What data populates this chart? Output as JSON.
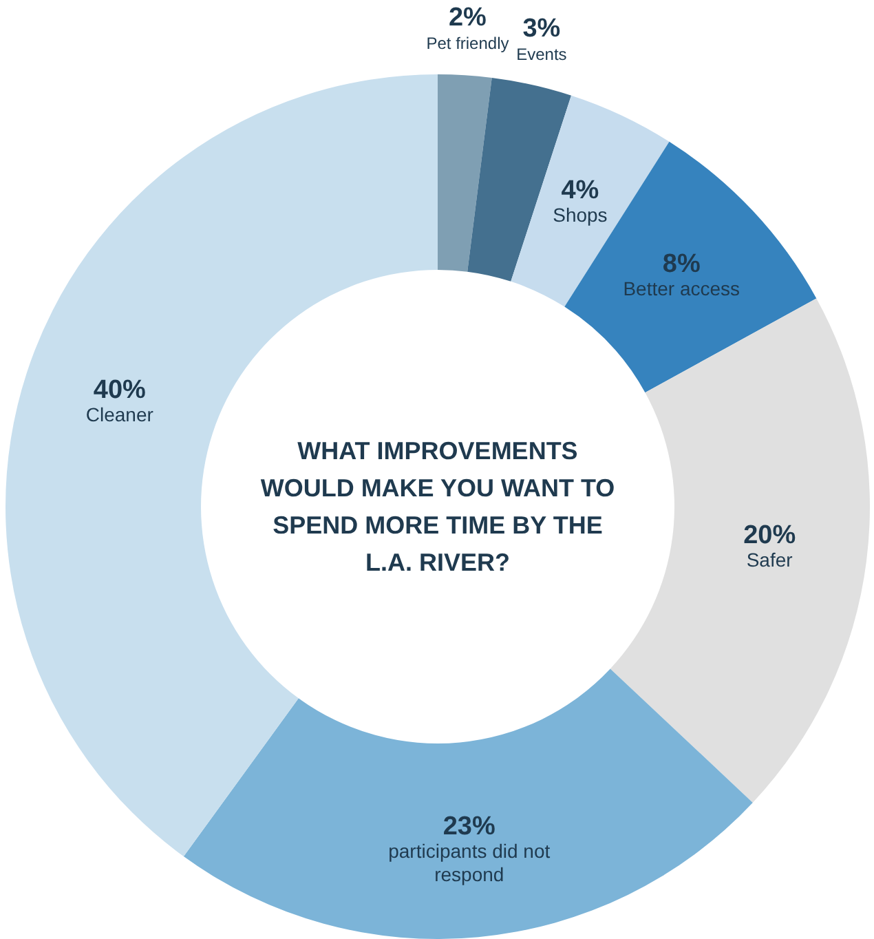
{
  "chart_data": {
    "type": "donut",
    "title": "WHAT IMPROVEMENTS WOULD MAKE YOU WANT TO SPEND MORE TIME BY THE L.A. RIVER?",
    "categories": [
      "Pet friendly",
      "Events",
      "Shops",
      "Better access",
      "Safer",
      "participants did not respond",
      "Cleaner"
    ],
    "values": [
      2,
      3,
      4,
      8,
      20,
      23,
      40
    ],
    "value_labels": [
      "2%",
      "3%",
      "4%",
      "8%",
      "20%",
      "23%",
      "40%"
    ],
    "colors": [
      "#7f9fb3",
      "#44708f",
      "#c6dcee",
      "#3683be",
      "#e0e0e0",
      "#7cb4d8",
      "#c8dfee"
    ]
  }
}
